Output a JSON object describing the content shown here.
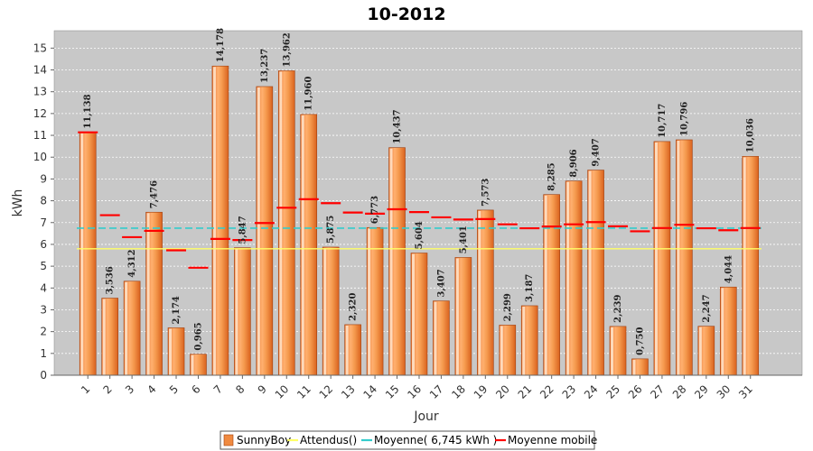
{
  "chart_data": {
    "type": "bar",
    "title": "10-2012",
    "xlabel": "Jour",
    "ylabel": "kWh",
    "ylim": [
      0,
      15.8
    ],
    "yticks": [
      0,
      1,
      2,
      3,
      4,
      5,
      6,
      7,
      8,
      9,
      10,
      11,
      12,
      13,
      14,
      15
    ],
    "grid": true,
    "legend_position": "bottom",
    "categories": [
      "1",
      "2",
      "3",
      "4",
      "5",
      "6",
      "7",
      "8",
      "9",
      "10",
      "11",
      "12",
      "13",
      "14",
      "15",
      "16",
      "17",
      "18",
      "19",
      "20",
      "21",
      "22",
      "23",
      "24",
      "25",
      "26",
      "27",
      "28",
      "29",
      "30",
      "31"
    ],
    "series": [
      {
        "name": "SunnyBoy",
        "kind": "bar",
        "color": "#f08a40",
        "values": [
          11.138,
          3.536,
          4.312,
          7.476,
          2.174,
          0.965,
          14.178,
          5.847,
          13.237,
          13.962,
          11.96,
          5.875,
          2.32,
          6.773,
          10.437,
          5.604,
          3.407,
          5.401,
          7.573,
          2.299,
          3.187,
          8.285,
          8.906,
          9.407,
          2.239,
          0.75,
          10.717,
          10.796,
          2.247,
          4.044,
          10.036
        ],
        "labels": [
          "11,138",
          "3,536",
          "4,312",
          "7,476",
          "2,174",
          "0,965",
          "14,178",
          "5,847",
          "13,237",
          "13,962",
          "11,960",
          "5,875",
          "2,320",
          "6,773",
          "10,437",
          "5,604",
          "3,407",
          "5,401",
          "7,573",
          "2,299",
          "3,187",
          "8,285",
          "8,906",
          "9,407",
          "2,239",
          "0,750",
          "10,717",
          "10,796",
          "2,247",
          "4,044",
          "10,036"
        ]
      },
      {
        "name": "Attendus()",
        "kind": "line",
        "color": "#ffff66",
        "value": 5.8
      },
      {
        "name": "Moyenne( 6,745 kWh )",
        "kind": "line",
        "color": "#33cccc",
        "value": 6.745
      },
      {
        "name": "Moyenne mobile",
        "kind": "step",
        "color": "#ff0000",
        "values": [
          11.14,
          7.34,
          6.33,
          6.62,
          5.73,
          4.93,
          6.25,
          6.2,
          6.98,
          7.68,
          8.07,
          7.89,
          7.46,
          7.41,
          7.61,
          7.48,
          7.24,
          7.14,
          7.16,
          6.92,
          6.74,
          6.82,
          6.92,
          7.02,
          6.83,
          6.6,
          6.75,
          6.9,
          6.74,
          6.65,
          6.75
        ]
      }
    ]
  }
}
